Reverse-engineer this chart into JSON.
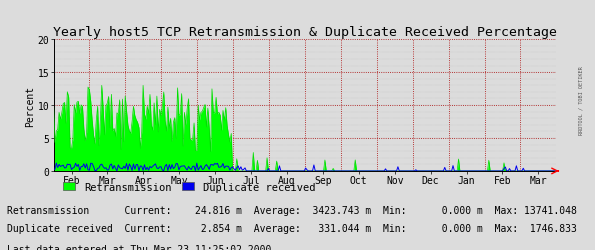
{
  "title": "Yearly host5 TCP Retransmission & Duplicate Received Percentage",
  "ylabel": "Percent",
  "ylim": [
    0,
    20
  ],
  "yticks": [
    0,
    5,
    10,
    15,
    20
  ],
  "background_color": "#dcdcdc",
  "plot_bg_color": "#dcdcdc",
  "retrans_color": "#00ff00",
  "retrans_line_color": "#00dd00",
  "dup_color": "#0000ee",
  "grid_h_color": "#aa0000",
  "grid_v_color": "#888888",
  "legend_retrans": "Retransmission",
  "legend_dup": "Duplicate received",
  "stats_line1": "Retransmission      Current:    24.816 m  Average:  3423.743 m  Min:      0.000 m  Max: 13741.048",
  "stats_line2": "Duplicate received  Current:     2.854 m  Average:   331.044 m  Min:      0.000 m  Max:  1746.833",
  "stats_line3": "Last data entered at Thu Mar 23 11:25:02 2000.",
  "month_labels": [
    "Feb",
    "Mar",
    "Apr",
    "May",
    "Jun",
    "Jul",
    "Aug",
    "Sep",
    "Oct",
    "Nov",
    "Dec",
    "Jan",
    "Feb",
    "Mar"
  ],
  "right_label": "RRDTOOL / TOBI OETIKER",
  "title_fontsize": 9.5,
  "axis_fontsize": 7,
  "stats_fontsize": 7,
  "legend_fontsize": 7.5
}
